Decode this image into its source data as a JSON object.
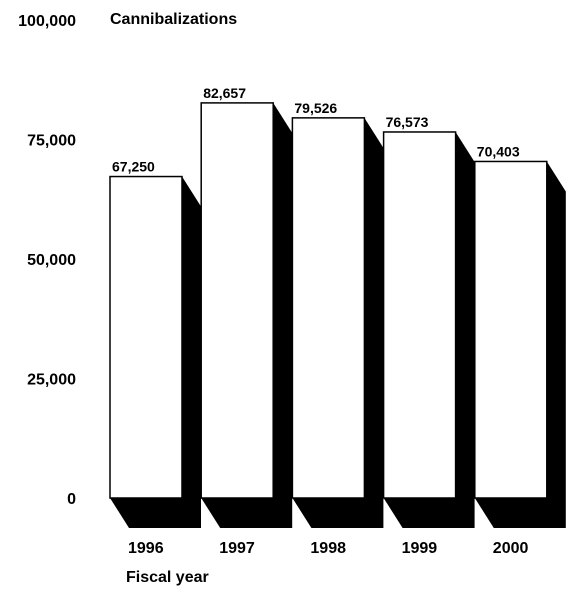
{
  "chart_data": {
    "type": "bar",
    "style": "3d-extruded",
    "ylabel": "Cannibalizations",
    "xlabel": "Fiscal year",
    "categories": [
      "1996",
      "1997",
      "1998",
      "1999",
      "2000"
    ],
    "values": [
      67250,
      82657,
      79526,
      76573,
      70403
    ],
    "value_labels": [
      "67,250",
      "82,657",
      "79,526",
      "76,573",
      "70,403"
    ],
    "ylim": [
      0,
      100000
    ],
    "yticks": [
      0,
      25000,
      50000,
      75000,
      100000
    ],
    "ytick_labels": [
      "0",
      "25,000",
      "50,000",
      "75,000",
      "100,000"
    ],
    "grid": false,
    "legend": "none",
    "colors": {
      "bar_face": "#ffffff",
      "bar_shadow": "#000000",
      "outline": "#000000",
      "text": "#000000"
    }
  }
}
